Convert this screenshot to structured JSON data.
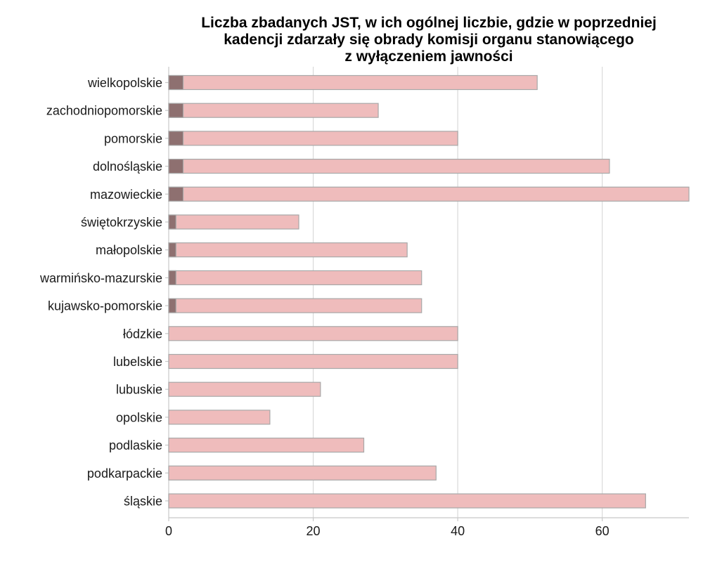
{
  "chart_data": {
    "type": "bar",
    "orientation": "horizontal",
    "stacked": false,
    "title_lines": [
      "Liczba zbadanych JST, w ich ogólnej liczbie, gdzie w poprzedniej",
      "kadencji zdarzały się obrady komisji organu stanowiącego",
      "z wyłączeniem jawności"
    ],
    "xlabel": "",
    "ylabel": "",
    "xlim": [
      0,
      72
    ],
    "xticks": [
      0,
      20,
      40,
      60
    ],
    "grid": "vertical",
    "legend": "none",
    "categories": [
      "wielkopolskie",
      "zachodniopomorskie",
      "pomorskie",
      "dolnośląskie",
      "mazowieckie",
      "świętokrzyskie",
      "małopolskie",
      "warmińsko-mazurskie",
      "kujawsko-pomorskie",
      "łódzkie",
      "lubelskie",
      "lubuskie",
      "opolskie",
      "podlaskie",
      "podkarpackie",
      "śląskie"
    ],
    "series": [
      {
        "role": "total",
        "color": "#efbcbc",
        "values": [
          51,
          29,
          40,
          61,
          72,
          18,
          33,
          35,
          35,
          40,
          40,
          21,
          14,
          27,
          37,
          66
        ]
      },
      {
        "role": "with_closed_sessions",
        "color": "#8e7070",
        "values": [
          2,
          2,
          2,
          2,
          2,
          1,
          1,
          1,
          1,
          0,
          0,
          0,
          0,
          0,
          0,
          0
        ]
      }
    ],
    "colors": {
      "bar_stroke": "#a8a8a8",
      "grid": "#d9d9d9",
      "axis": "#c8c8c8",
      "text": "#1a1a1a"
    }
  }
}
